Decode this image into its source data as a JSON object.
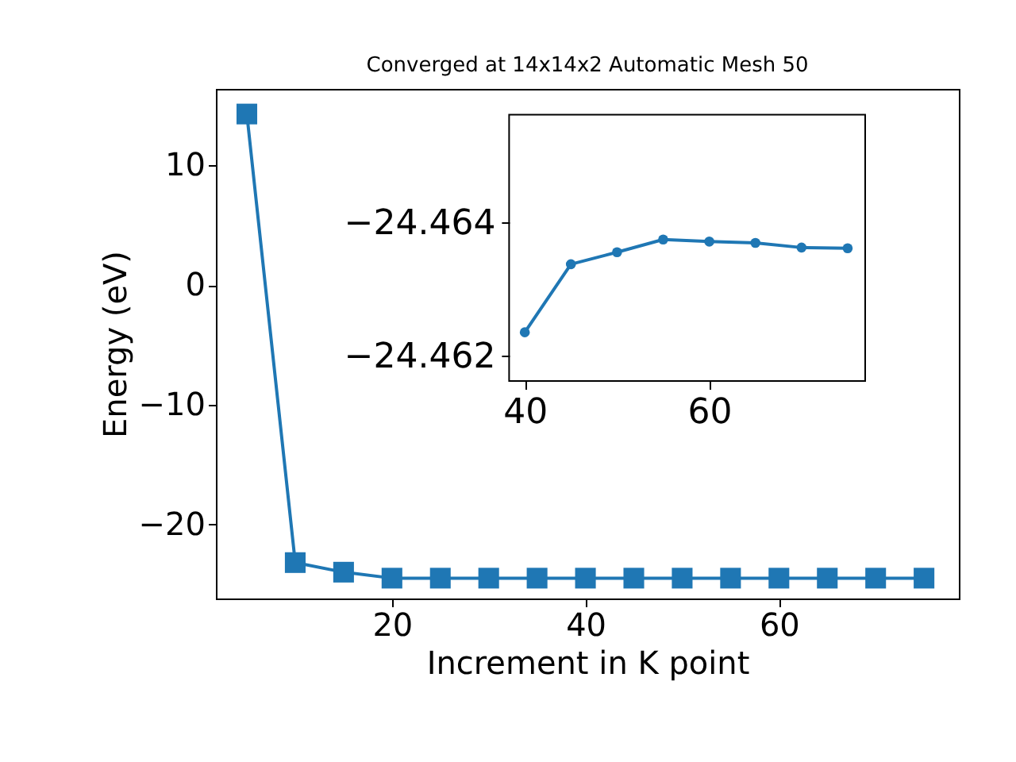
{
  "chart_data": [
    {
      "type": "line",
      "title": "Converged at 14x14x2 Automatic Mesh 50",
      "xlabel": "Increment in K point",
      "ylabel": "Energy (eV)",
      "marker": "square",
      "grid": false,
      "x": [
        5,
        10,
        15,
        20,
        25,
        30,
        35,
        40,
        45,
        50,
        55,
        60,
        65,
        70,
        75
      ],
      "series": [
        {
          "color": "#1f77b4",
          "values": [
            14.3,
            -23.2,
            -24.0,
            -24.5,
            -24.5,
            -24.5,
            -24.5,
            -24.5,
            -24.5,
            -24.5,
            -24.5,
            -24.5,
            -24.5,
            -24.5,
            -24.5
          ]
        }
      ],
      "xlim": [
        1.8,
        78.6
      ],
      "ylim": [
        -26.2,
        16.4
      ],
      "xticks": [
        20,
        40,
        60
      ],
      "yticks": [
        -20,
        -10,
        0,
        10
      ]
    },
    {
      "type": "line",
      "marker": "circle",
      "grid": false,
      "x": [
        40,
        45,
        50,
        55,
        60,
        65,
        70,
        75
      ],
      "series": [
        {
          "color": "#1f77b4",
          "values": [
            -24.46235,
            -24.46337,
            -24.46355,
            -24.46374,
            -24.46371,
            -24.46369,
            -24.46362,
            -24.46361
          ]
        }
      ],
      "xlim": [
        38.3,
        76.9
      ],
      "ylim": [
        -24.46162,
        -24.46561
      ],
      "xticks": [
        40,
        60
      ],
      "yticks": [
        -24.464,
        -24.462
      ]
    }
  ]
}
